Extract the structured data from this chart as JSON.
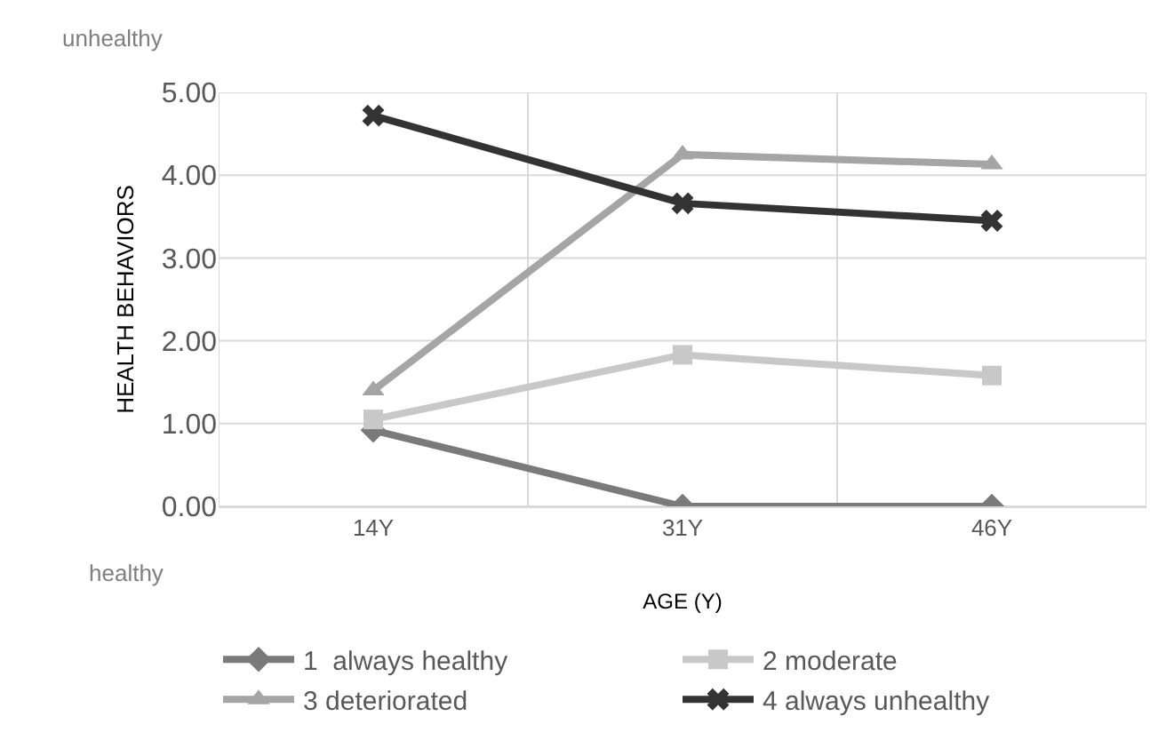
{
  "chart_data": {
    "type": "line",
    "xlabel": "AGE (Y)",
    "ylabel": "HEALTH BEHAVIORS",
    "categories": [
      "14Y",
      "31Y",
      "46Y"
    ],
    "series": [
      {
        "name": "1  always healthy",
        "color": "#7a7a7a",
        "marker": "diamond",
        "values": [
          0.92,
          0,
          0
        ]
      },
      {
        "name": "2 moderate",
        "color": "#c8c8c8",
        "marker": "square",
        "values": [
          1.05,
          1.83,
          1.58
        ]
      },
      {
        "name": "3 deteriorated",
        "color": "#a5a5a5",
        "marker": "triangle",
        "values": [
          1.4,
          4.25,
          4.13
        ]
      },
      {
        "name": "4 always unhealthy",
        "color": "#333333",
        "marker": "cross",
        "values": [
          4.72,
          3.66,
          3.45
        ]
      }
    ],
    "ylim": [
      0,
      5
    ],
    "yticks": [
      {
        "value": 0,
        "label": "0.00"
      },
      {
        "value": 1,
        "label": "1.00"
      },
      {
        "value": 2,
        "label": "2.00"
      },
      {
        "value": 3,
        "label": "3.00"
      },
      {
        "value": 4,
        "label": "4.00"
      },
      {
        "value": 5,
        "label": "5.00"
      }
    ],
    "annotations": [
      "unhealthy",
      "healthy"
    ],
    "grid": true,
    "legend": "bottom",
    "line_style": "solid"
  }
}
